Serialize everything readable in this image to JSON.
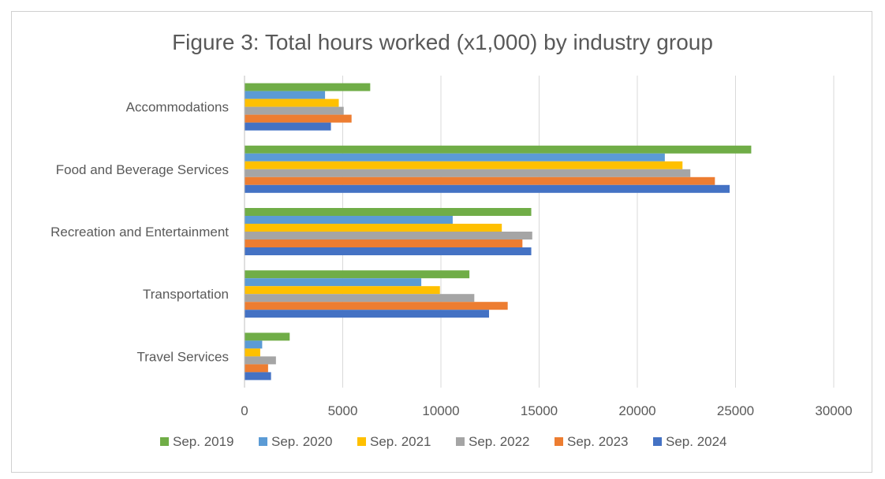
{
  "chart_data": {
    "type": "bar",
    "orientation": "horizontal",
    "title": "Figure 3: Total hours worked (x1,000) by industry group",
    "categories": [
      "Accommodations",
      "Food and Beverage Services",
      "Recreation and Entertainment",
      "Transportation",
      "Travel Services"
    ],
    "series": [
      {
        "name": "Sep. 2019",
        "color": "#70AD47",
        "values": [
          6400,
          25800,
          14600,
          11450,
          2300
        ]
      },
      {
        "name": "Sep. 2020",
        "color": "#5B9BD5",
        "values": [
          4100,
          21400,
          10600,
          9000,
          900
        ]
      },
      {
        "name": "Sep. 2021",
        "color": "#FFC000",
        "values": [
          4800,
          22300,
          13100,
          9950,
          800
        ]
      },
      {
        "name": "Sep. 2022",
        "color": "#A5A5A5",
        "values": [
          5050,
          22700,
          14650,
          11700,
          1600
        ]
      },
      {
        "name": "Sep. 2023",
        "color": "#ED7D31",
        "values": [
          5450,
          23950,
          14150,
          13400,
          1200
        ]
      },
      {
        "name": "Sep. 2024",
        "color": "#4472C4",
        "values": [
          4400,
          24700,
          14600,
          12450,
          1350
        ]
      }
    ],
    "xlim": [
      0,
      30000
    ],
    "xticks": [
      "0",
      "5000",
      "10000",
      "15000",
      "20000",
      "25000",
      "30000"
    ],
    "grid": true,
    "legend_position": "bottom"
  }
}
